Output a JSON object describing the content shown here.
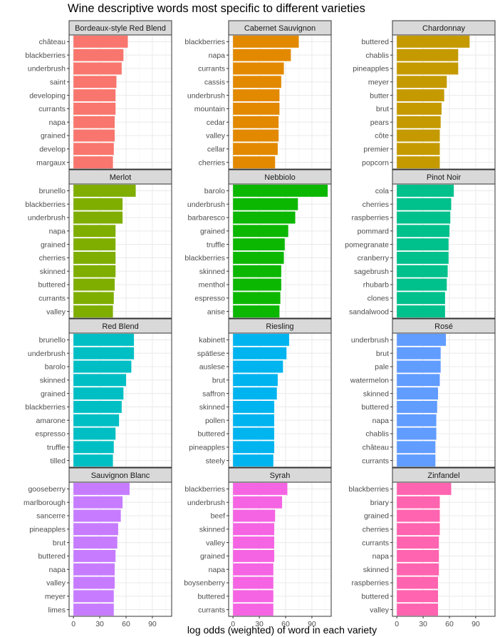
{
  "chart_data": {
    "type": "bar",
    "orientation": "horizontal",
    "title": "Wine descriptive words most specific to different varieties",
    "xlabel": "log odds (weighted) of word in each variety",
    "ylabel": "",
    "xlim": [
      -5,
      112
    ],
    "x_ticks": [
      0,
      30,
      60,
      90
    ],
    "x_tick_labels": [
      "0",
      "30",
      "60",
      "90"
    ],
    "grid": true,
    "legend": "none",
    "facets": [
      {
        "name": "Bordeaux-style Red Blend",
        "color": "#F8766D",
        "categories": [
          "château",
          "blackberries",
          "underbrush",
          "saint",
          "developing",
          "currants",
          "napa",
          "grained",
          "develop",
          "margaux"
        ],
        "values": [
          62,
          57,
          55,
          49,
          48,
          48,
          47,
          47,
          46,
          45
        ]
      },
      {
        "name": "Cabernet Sauvignon",
        "color": "#E38900",
        "categories": [
          "blackberries",
          "napa",
          "currants",
          "cassis",
          "underbrush",
          "mountain",
          "cedar",
          "valley",
          "cellar",
          "cherries"
        ],
        "values": [
          75,
          66,
          58,
          55,
          53,
          53,
          52,
          52,
          51,
          48
        ]
      },
      {
        "name": "Chardonnay",
        "color": "#C49A00",
        "categories": [
          "buttered",
          "chablis",
          "pineapples",
          "meyer",
          "butter",
          "brut",
          "pears",
          "côte",
          "premier",
          "popcorn"
        ],
        "values": [
          83,
          70,
          70,
          57,
          54,
          51,
          50,
          49,
          49,
          49
        ]
      },
      {
        "name": "Merlot",
        "color": "#7FAE00",
        "categories": [
          "brunello",
          "blackberries",
          "underbrush",
          "napa",
          "grained",
          "cherries",
          "skinned",
          "buttered",
          "currants",
          "valley"
        ],
        "values": [
          71,
          56,
          56,
          48,
          48,
          48,
          48,
          47,
          46,
          45
        ]
      },
      {
        "name": "Nebbiolo",
        "color": "#0CB702",
        "categories": [
          "barolo",
          "underbrush",
          "barbaresco",
          "grained",
          "truffle",
          "blackberries",
          "skinned",
          "menthol",
          "espresso",
          "anise"
        ],
        "values": [
          108,
          74,
          71,
          63,
          59,
          58,
          55,
          55,
          54,
          53
        ]
      },
      {
        "name": "Pinot Noir",
        "color": "#00C08B",
        "categories": [
          "cola",
          "cherries",
          "raspberries",
          "pommard",
          "pomegranate",
          "cranberry",
          "sagebrush",
          "rhubarb",
          "clones",
          "sandalwood"
        ],
        "values": [
          65,
          62,
          61,
          60,
          59,
          59,
          58,
          57,
          55,
          55
        ]
      },
      {
        "name": "Red Blend",
        "color": "#00BFC4",
        "categories": [
          "brunello",
          "underbrush",
          "barolo",
          "skinned",
          "grained",
          "blackberries",
          "amarone",
          "espresso",
          "truffle",
          "tilled"
        ],
        "values": [
          69,
          69,
          66,
          60,
          57,
          55,
          52,
          48,
          46,
          45
        ]
      },
      {
        "name": "Riesling",
        "color": "#00B4F0",
        "categories": [
          "kabinett",
          "spätlese",
          "auslese",
          "brut",
          "saffron",
          "skinned",
          "pollen",
          "buttered",
          "pineapples",
          "steely"
        ],
        "values": [
          64,
          61,
          57,
          51,
          50,
          47,
          47,
          47,
          47,
          46
        ]
      },
      {
        "name": "Rosé",
        "color": "#619CFF",
        "categories": [
          "underbrush",
          "brut",
          "pale",
          "watermelon",
          "skinned",
          "buttered",
          "napa",
          "chablis",
          "château",
          "currants"
        ],
        "values": [
          56,
          50,
          50,
          49,
          47,
          46,
          45,
          45,
          44,
          44
        ]
      },
      {
        "name": "Sauvignon Blanc",
        "color": "#C77CFF",
        "categories": [
          "gooseberry",
          "marlborough",
          "sancerre",
          "pineapples",
          "brut",
          "buttered",
          "napa",
          "valley",
          "meyer",
          "limes"
        ],
        "values": [
          64,
          56,
          54,
          51,
          50,
          48,
          47,
          47,
          46,
          46
        ]
      },
      {
        "name": "Syrah",
        "color": "#F564E3",
        "categories": [
          "blackberries",
          "underbrush",
          "beef",
          "skinned",
          "valley",
          "grained",
          "napa",
          "boysenberry",
          "buttered",
          "currants"
        ],
        "values": [
          62,
          56,
          48,
          47,
          47,
          47,
          46,
          46,
          46,
          46
        ]
      },
      {
        "name": "Zinfandel",
        "color": "#FF64B0",
        "categories": [
          "blackberries",
          "briary",
          "grained",
          "cherries",
          "currants",
          "napa",
          "skinned",
          "raspberries",
          "buttered",
          "valley"
        ],
        "values": [
          62,
          49,
          49,
          49,
          48,
          48,
          48,
          47,
          47,
          47
        ]
      }
    ]
  }
}
